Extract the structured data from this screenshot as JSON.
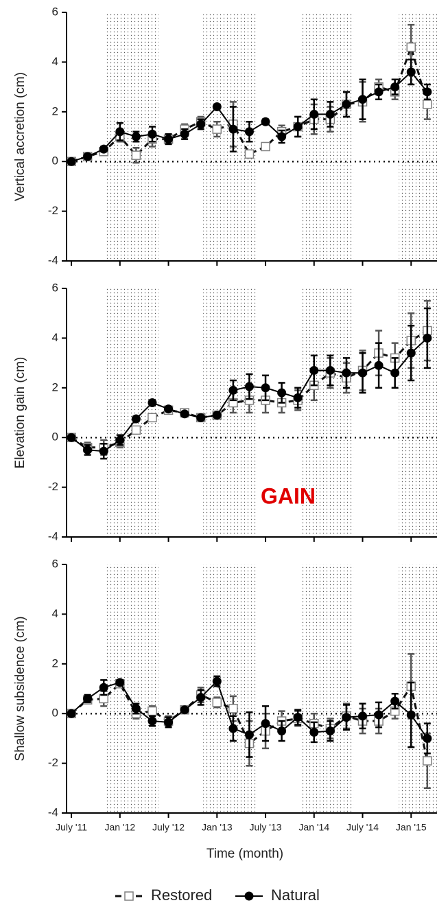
{
  "chart_data": [
    {
      "type": "line",
      "ylabel": "Vertical accretion (cm)",
      "x": [
        0,
        2,
        4,
        6,
        8,
        10,
        12,
        14,
        16,
        18,
        20,
        22,
        24,
        26,
        28,
        30,
        32,
        34,
        36,
        38,
        40,
        42,
        44
      ],
      "xlim": [
        -0.6,
        45.2
      ],
      "xticks": [
        0,
        6,
        12,
        18,
        24,
        30,
        36,
        42
      ],
      "ylim": [
        -4,
        6
      ],
      "yticks": [
        -4,
        -2,
        0,
        2,
        4,
        6
      ],
      "zero_line": true,
      "shaded_periods": [
        [
          4.2,
          10.8
        ],
        [
          16.3,
          22.9
        ],
        [
          28.3,
          34.9
        ],
        [
          40.5,
          45.2
        ]
      ],
      "series": [
        {
          "name": "Restored",
          "color": "#808080",
          "marker": "square",
          "dashed": true,
          "values": [
            0,
            0.2,
            0.4,
            1.0,
            0.25,
            0.9,
            0.9,
            1.3,
            1.6,
            1.3,
            1.5,
            0.3,
            0.6,
            1.2,
            1.4,
            1.7,
            1.7,
            2.3,
            2.4,
            3.0,
            2.8,
            4.6,
            2.3
          ],
          "errors": [
            0.1,
            0.1,
            0.1,
            0.2,
            0.3,
            0.3,
            0.2,
            0.2,
            0.2,
            0.3,
            0.9,
            0.15,
            0.1,
            0.25,
            0.4,
            0.6,
            0.5,
            0.5,
            0.8,
            0.3,
            0.3,
            0.9,
            0.6
          ]
        },
        {
          "name": "Natural",
          "color": "#000000",
          "marker": "circle",
          "dashed": false,
          "values": [
            0,
            0.2,
            0.5,
            1.2,
            1.0,
            1.1,
            0.9,
            1.1,
            1.5,
            2.2,
            1.3,
            1.2,
            1.6,
            1.0,
            1.4,
            1.9,
            1.9,
            2.3,
            2.5,
            2.8,
            3.0,
            3.6,
            2.8
          ],
          "errors": [
            0.1,
            0.1,
            0.1,
            0.35,
            0.2,
            0.3,
            0.2,
            0.2,
            0.2,
            0.1,
            0.9,
            0.4,
            0.1,
            0.25,
            0.4,
            0.6,
            0.5,
            0.5,
            0.8,
            0.3,
            0.3,
            0.5,
            0.3
          ]
        }
      ]
    },
    {
      "type": "line",
      "ylabel": "Elevation gain (cm)",
      "annotation": "GAIN",
      "x": [
        0,
        2,
        4,
        6,
        8,
        10,
        12,
        14,
        16,
        18,
        20,
        22,
        24,
        26,
        28,
        30,
        32,
        34,
        36,
        38,
        40,
        42,
        44
      ],
      "xlim": [
        -0.6,
        45.2
      ],
      "xticks": [
        0,
        6,
        12,
        18,
        24,
        30,
        36,
        42
      ],
      "ylim": [
        -4,
        6
      ],
      "yticks": [
        -4,
        -2,
        0,
        2,
        4,
        6
      ],
      "zero_line": true,
      "shaded_periods": [
        [
          4.2,
          10.8
        ],
        [
          16.3,
          22.9
        ],
        [
          28.3,
          34.9
        ],
        [
          40.5,
          45.2
        ]
      ],
      "series": [
        {
          "name": "Restored",
          "color": "#808080",
          "marker": "square",
          "dashed": true,
          "values": [
            0,
            -0.4,
            -0.4,
            -0.2,
            0.3,
            0.8,
            1.1,
            1.0,
            0.8,
            0.9,
            1.4,
            1.5,
            1.5,
            1.4,
            1.5,
            2.1,
            2.6,
            2.4,
            2.7,
            3.4,
            3.2,
            3.9,
            4.3
          ],
          "errors": [
            0.1,
            0.2,
            0.3,
            0.2,
            0.1,
            0.1,
            0.1,
            0.1,
            0.1,
            0.1,
            0.4,
            0.5,
            0.5,
            0.4,
            0.4,
            0.6,
            0.6,
            0.6,
            0.8,
            0.9,
            0.6,
            1.1,
            1.2
          ]
        },
        {
          "name": "Natural",
          "color": "#000000",
          "marker": "circle",
          "dashed": false,
          "values": [
            0,
            -0.5,
            -0.55,
            -0.1,
            0.75,
            1.4,
            1.15,
            0.95,
            0.8,
            0.9,
            1.9,
            2.05,
            2.0,
            1.8,
            1.6,
            2.7,
            2.7,
            2.6,
            2.6,
            2.9,
            2.6,
            3.4,
            4.0
          ],
          "errors": [
            0.1,
            0.2,
            0.3,
            0.2,
            0.1,
            0.1,
            0.1,
            0.1,
            0.1,
            0.1,
            0.4,
            0.5,
            0.5,
            0.4,
            0.4,
            0.6,
            0.6,
            0.6,
            0.8,
            0.9,
            0.6,
            1.1,
            1.2
          ]
        }
      ]
    },
    {
      "type": "line",
      "ylabel": "Shallow subsidence (cm)",
      "xlabel": "Time (month)",
      "legend": "bottom",
      "x": [
        0,
        2,
        4,
        6,
        8,
        10,
        12,
        14,
        16,
        18,
        20,
        22,
        24,
        26,
        28,
        30,
        32,
        34,
        36,
        38,
        40,
        42,
        44
      ],
      "xlim": [
        -0.6,
        45.2
      ],
      "xticks": [
        {
          "value": 0,
          "label": "July '11"
        },
        {
          "value": 6,
          "label": "Jan '12"
        },
        {
          "value": 12,
          "label": "July '12"
        },
        {
          "value": 18,
          "label": "Jan '13"
        },
        {
          "value": 24,
          "label": "July '13"
        },
        {
          "value": 30,
          "label": "Jan '14"
        },
        {
          "value": 36,
          "label": "July '14"
        },
        {
          "value": 42,
          "label": "Jan '15"
        }
      ],
      "ylim": [
        -4,
        6
      ],
      "yticks": [
        -4,
        -2,
        0,
        2,
        4,
        6
      ],
      "zero_line": true,
      "shaded_periods": [
        [
          4.2,
          10.8
        ],
        [
          16.3,
          22.9
        ],
        [
          28.3,
          34.9
        ],
        [
          40.5,
          45.2
        ]
      ],
      "series": [
        {
          "name": "Restored",
          "color": "#808080",
          "marker": "square",
          "dashed": true,
          "values": [
            0,
            0.55,
            0.6,
            1.2,
            0,
            0.1,
            -0.3,
            0.15,
            0.75,
            0.45,
            0.2,
            -1.2,
            -0.7,
            -0.3,
            -0.2,
            -0.4,
            -0.6,
            -0.1,
            -0.3,
            -0.3,
            0.1,
            1.1,
            -1.9
          ],
          "errors": [
            0.1,
            0.15,
            0.3,
            0.1,
            0.2,
            0.2,
            0.2,
            0.1,
            0.3,
            0.2,
            0.5,
            0.9,
            0.7,
            0.4,
            0.3,
            0.4,
            0.4,
            0.5,
            0.5,
            0.5,
            0.3,
            1.3,
            1.1
          ]
        },
        {
          "name": "Natural",
          "color": "#000000",
          "marker": "circle",
          "dashed": false,
          "values": [
            0,
            0.6,
            1.05,
            1.25,
            0.2,
            -0.3,
            -0.35,
            0.15,
            0.65,
            1.3,
            -0.6,
            -0.85,
            -0.4,
            -0.7,
            -0.15,
            -0.75,
            -0.7,
            -0.15,
            -0.1,
            -0.05,
            0.5,
            -0.05,
            -1.0
          ],
          "errors": [
            0.1,
            0.15,
            0.3,
            0.1,
            0.2,
            0.2,
            0.2,
            0.1,
            0.3,
            0.2,
            0.5,
            0.9,
            0.7,
            0.4,
            0.3,
            0.4,
            0.4,
            0.5,
            0.5,
            0.5,
            0.3,
            1.3,
            0.6
          ]
        }
      ]
    }
  ]
}
